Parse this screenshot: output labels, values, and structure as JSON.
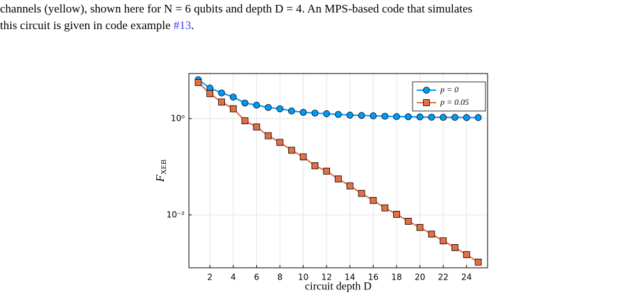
{
  "text": {
    "line1": "channels (yellow), shown here for N = 6 qubits and depth D = 4.  An MPS-based code that simulates",
    "line2": "this circuit is given in code example ",
    "link": "#13",
    "line2_end": "."
  },
  "chart_data": {
    "type": "line",
    "log_y": true,
    "grid": true,
    "legend": "top-right",
    "x_label": "circuit depth D",
    "y_label": "F",
    "y_label_sub": "XEB",
    "x": [
      1,
      2,
      3,
      4,
      5,
      6,
      7,
      8,
      9,
      10,
      11,
      12,
      13,
      14,
      15,
      16,
      17,
      18,
      19,
      20,
      21,
      22,
      23,
      24,
      25
    ],
    "xlim": [
      0.2,
      25.8
    ],
    "xticks": [
      2,
      4,
      6,
      8,
      10,
      12,
      14,
      16,
      18,
      20,
      22,
      24
    ],
    "ylim": [
      0.0008,
      8.6
    ],
    "yticks": [
      {
        "value": 1,
        "label": "10⁰"
      },
      {
        "value": 0.01,
        "label": "10⁻²"
      }
    ],
    "series": [
      {
        "name": "p = 0",
        "color": "#009af9",
        "marker": "circle",
        "values": [
          6.4,
          4.3,
          3.4,
          2.8,
          2.1,
          1.9,
          1.7,
          1.6,
          1.44,
          1.35,
          1.3,
          1.26,
          1.22,
          1.18,
          1.16,
          1.14,
          1.12,
          1.1,
          1.09,
          1.08,
          1.07,
          1.06,
          1.06,
          1.05,
          1.05
        ]
      },
      {
        "name": "p = 0.05",
        "color": "#e26f46",
        "marker": "square",
        "values": [
          5.6,
          3.3,
          2.2,
          1.6,
          0.9,
          0.67,
          0.44,
          0.32,
          0.22,
          0.16,
          0.105,
          0.081,
          0.056,
          0.04,
          0.028,
          0.02,
          0.014,
          0.0103,
          0.0074,
          0.0055,
          0.004,
          0.0029,
          0.0021,
          0.0015,
          0.00105
        ]
      }
    ]
  }
}
